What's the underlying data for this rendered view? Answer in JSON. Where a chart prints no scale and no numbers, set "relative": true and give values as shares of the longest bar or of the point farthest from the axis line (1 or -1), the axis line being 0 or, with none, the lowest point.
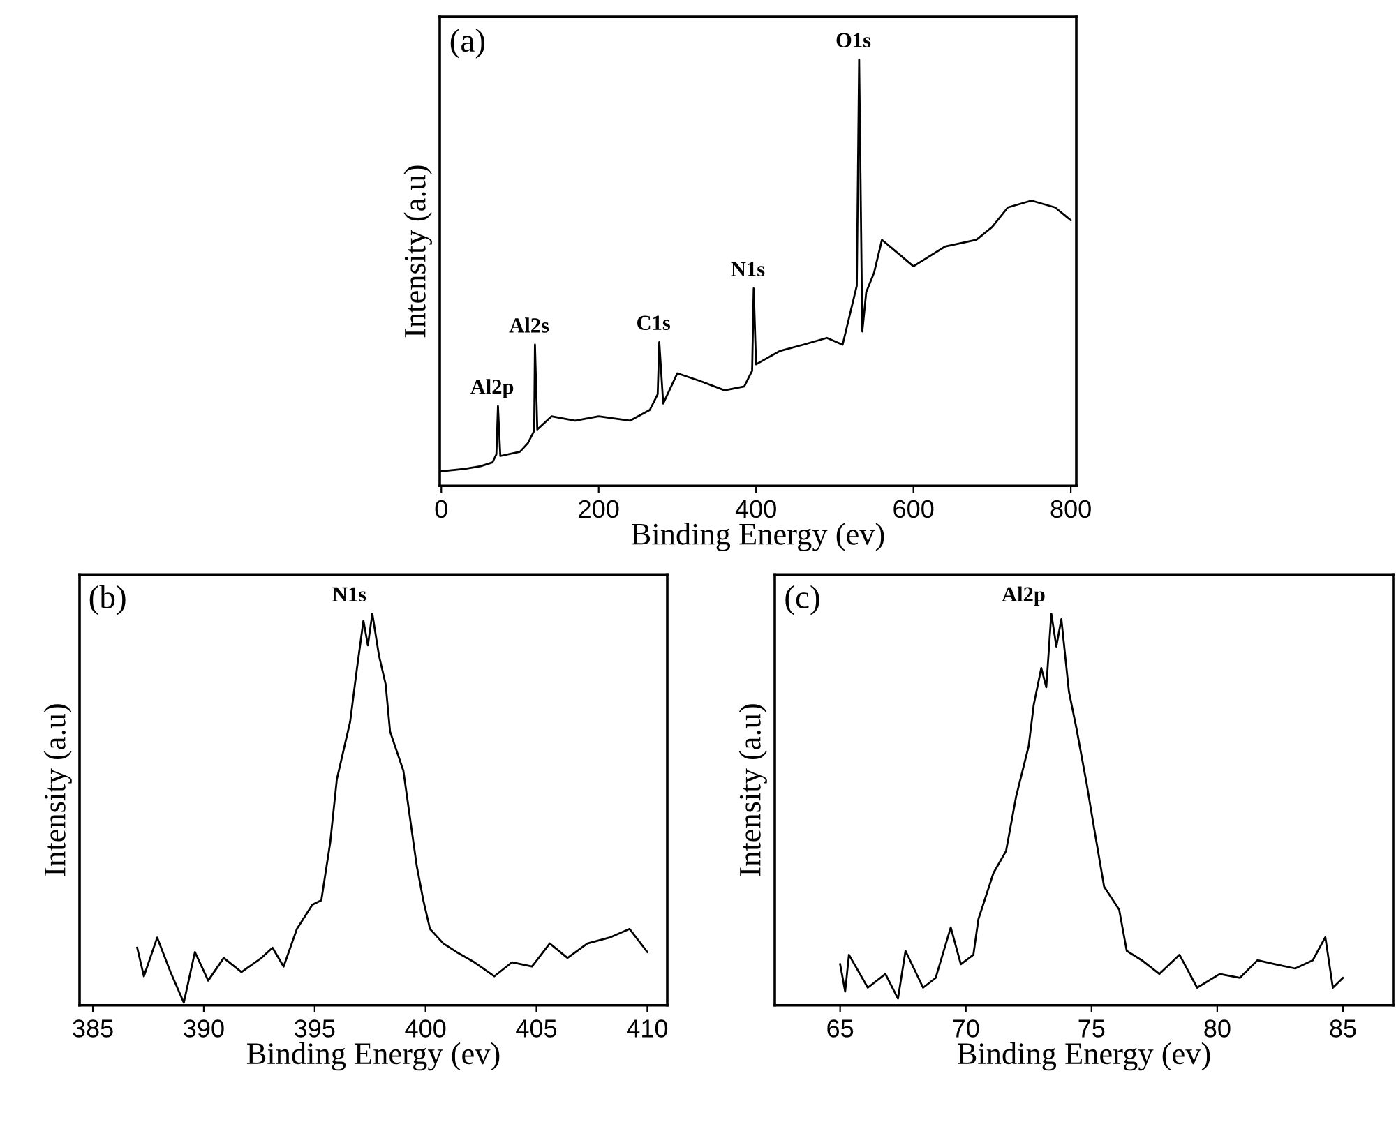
{
  "chart_data": [
    {
      "type": "line",
      "relative": true,
      "title": "(a)",
      "xlabel": "Binding Energy (ev)",
      "ylabel": "Intensity (a.u)",
      "xlim": [
        -2,
        807
      ],
      "xticks": [
        0,
        200,
        400,
        600,
        800
      ],
      "tick_labels": "x",
      "grid": false,
      "legend": false,
      "series": [
        {
          "color": "#000000",
          "x": [
            0,
            30,
            50,
            65,
            70,
            72,
            75,
            100,
            110,
            118,
            119,
            122,
            140,
            170,
            200,
            240,
            265,
            275,
            277,
            282,
            300,
            330,
            360,
            385,
            395,
            397,
            400,
            430,
            460,
            490,
            510,
            520,
            528,
            531,
            535,
            540,
            550,
            560,
            600,
            640,
            680,
            700,
            720,
            750,
            780,
            800
          ],
          "values": [
            0.034,
            0.04,
            0.046,
            0.055,
            0.074,
            0.187,
            0.07,
            0.08,
            0.1,
            0.129,
            0.331,
            0.132,
            0.163,
            0.153,
            0.163,
            0.153,
            0.178,
            0.215,
            0.337,
            0.193,
            0.264,
            0.245,
            0.224,
            0.233,
            0.27,
            0.463,
            0.285,
            0.316,
            0.331,
            0.347,
            0.331,
            0.408,
            0.469,
            1.0,
            0.362,
            0.454,
            0.5,
            0.577,
            0.515,
            0.561,
            0.577,
            0.607,
            0.653,
            0.669,
            0.653,
            0.623
          ]
        }
      ],
      "annotations": [
        {
          "text": "Al2p",
          "x": 72,
          "y": 0.187
        },
        {
          "text": "Al2s",
          "x": 119,
          "y": 0.331
        },
        {
          "text": "C1s",
          "x": 277,
          "y": 0.337
        },
        {
          "text": "N1s",
          "x": 397,
          "y": 0.463
        },
        {
          "text": "O1s",
          "x": 531,
          "y": 1.0
        }
      ]
    },
    {
      "type": "line",
      "relative": true,
      "title": "(b)",
      "xlabel": "Binding Energy (ev)",
      "ylabel": "Intensity (a.u)",
      "xlim": [
        384.4,
        410.9
      ],
      "xticks": [
        385,
        390,
        395,
        400,
        405,
        410
      ],
      "tick_labels": "x",
      "grid": false,
      "legend": false,
      "series": [
        {
          "color": "#000000",
          "x": [
            387.0,
            387.3,
            387.9,
            388.5,
            389.1,
            389.6,
            390.2,
            390.9,
            391.7,
            392.6,
            393.1,
            393.6,
            394.2,
            394.9,
            395.3,
            395.7,
            396.0,
            396.6,
            396.9,
            397.2,
            397.4,
            397.6,
            397.9,
            398.2,
            398.4,
            399.0,
            399.3,
            399.6,
            399.9,
            400.2,
            400.8,
            401.4,
            402.2,
            403.1,
            403.9,
            404.8,
            405.6,
            406.4,
            407.3,
            408.3,
            409.2,
            410.0
          ],
          "values": [
            0.147,
            0.074,
            0.173,
            0.085,
            0.007,
            0.136,
            0.063,
            0.121,
            0.085,
            0.121,
            0.147,
            0.099,
            0.195,
            0.257,
            0.268,
            0.415,
            0.577,
            0.724,
            0.857,
            0.982,
            0.919,
            1.0,
            0.893,
            0.82,
            0.699,
            0.599,
            0.478,
            0.357,
            0.268,
            0.195,
            0.158,
            0.136,
            0.11,
            0.074,
            0.11,
            0.099,
            0.158,
            0.121,
            0.158,
            0.173,
            0.195,
            0.136
          ]
        }
      ],
      "annotations": [
        {
          "text": "N1s",
          "x": 397.6,
          "y": 1.0
        }
      ]
    },
    {
      "type": "line",
      "relative": true,
      "title": "(c)",
      "xlabel": "Binding Energy (ev)",
      "ylabel": "Intensity (a.u)",
      "xlim": [
        62.4,
        87.0
      ],
      "xticks": [
        65,
        70,
        75,
        80,
        85
      ],
      "tick_labels": "x",
      "grid": false,
      "legend": false,
      "series": [
        {
          "color": "#000000",
          "x": [
            65.0,
            65.2,
            65.35,
            66.1,
            66.8,
            67.3,
            67.6,
            68.3,
            68.8,
            69.4,
            69.8,
            70.3,
            70.5,
            71.1,
            71.6,
            72.0,
            72.5,
            72.7,
            73.0,
            73.2,
            73.4,
            73.6,
            73.8,
            74.1,
            74.4,
            74.8,
            75.1,
            75.5,
            76.1,
            76.4,
            77.0,
            77.7,
            78.5,
            79.2,
            80.1,
            80.9,
            81.6,
            82.3,
            83.1,
            83.8,
            84.3,
            84.6,
            85.0
          ],
          "values": [
            0.105,
            0.035,
            0.129,
            0.045,
            0.08,
            0.017,
            0.139,
            0.045,
            0.07,
            0.199,
            0.105,
            0.129,
            0.22,
            0.338,
            0.394,
            0.533,
            0.662,
            0.767,
            0.861,
            0.812,
            1.0,
            0.916,
            0.986,
            0.801,
            0.707,
            0.568,
            0.453,
            0.303,
            0.244,
            0.139,
            0.115,
            0.08,
            0.129,
            0.045,
            0.08,
            0.07,
            0.115,
            0.105,
            0.094,
            0.115,
            0.174,
            0.045,
            0.07
          ]
        }
      ],
      "annotations": [
        {
          "text": "Al2p",
          "x": 73.4,
          "y": 1.0
        }
      ]
    }
  ]
}
